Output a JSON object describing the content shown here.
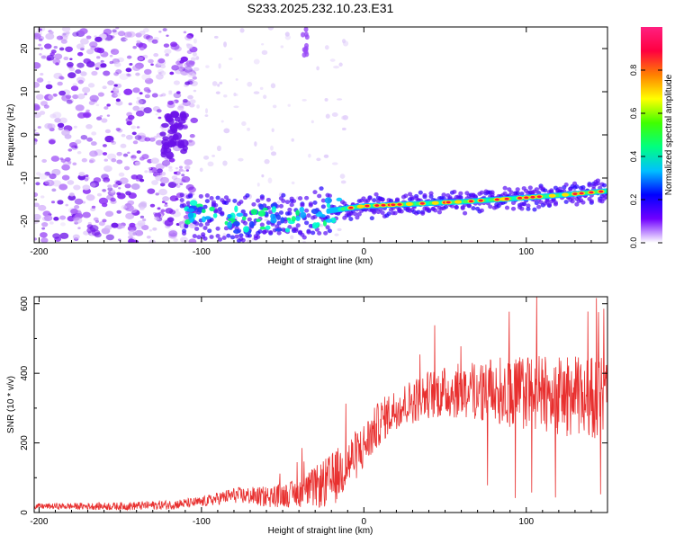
{
  "title": "S233.2025.232.10.23.E31",
  "colors": {
    "signal": "#ee2222",
    "snr_line": "#e8302f",
    "noise": "#7a18f0",
    "noise_light": "#d4b7f8",
    "axis": "#000000"
  },
  "chart_data": [
    {
      "type": "heatmap",
      "name": "spectrogram",
      "xlabel": "Height of straight line (km)",
      "ylabel": "Frequency (Hz)",
      "xlim": [
        -203,
        150
      ],
      "ylim": [
        -25,
        25
      ],
      "xticks": [
        -200,
        -100,
        0,
        100
      ],
      "yticks": [
        -20,
        -10,
        0,
        10,
        20
      ],
      "colorbar": {
        "label": "Normalized spectral amplitude",
        "ticks": [
          0,
          0.2,
          0.4,
          0.6,
          0.8
        ],
        "tick_labels": [
          "0.0",
          "0.2",
          "0.4",
          "0.6",
          "0.8"
        ],
        "range": [
          0,
          1
        ],
        "colormap": [
          "#ffffff",
          "#7000ff",
          "#0000ff",
          "#00c0ff",
          "#00ff80",
          "#40ff00",
          "#ffff00",
          "#ff8000",
          "#ff0040",
          "#ff2080"
        ]
      },
      "signal_track": [
        {
          "x": -110,
          "f": -18.5
        },
        {
          "x": -80,
          "f": -19.5
        },
        {
          "x": -40,
          "f": -19.0
        },
        {
          "x": -20,
          "f": -17.5
        },
        {
          "x": 0,
          "f": -16.5
        },
        {
          "x": 30,
          "f": -16.0
        },
        {
          "x": 60,
          "f": -15.5
        },
        {
          "x": 90,
          "f": -14.8
        },
        {
          "x": 120,
          "f": -14.0
        },
        {
          "x": 150,
          "f": -13.0
        }
      ],
      "noise_region_x": [
        -203,
        -110
      ],
      "noise_cluster": {
        "x": [
          -125,
          -110
        ],
        "f": [
          -5,
          5
        ]
      }
    },
    {
      "type": "line",
      "name": "snr",
      "xlabel": "Height of straight line (km)",
      "ylabel": "SNR (10 * v/v)",
      "xlim": [
        -203,
        150
      ],
      "ylim": [
        0,
        620
      ],
      "xticks": [
        -200,
        -100,
        0,
        100
      ],
      "yticks": [
        0,
        200,
        400,
        600
      ],
      "envelope": {
        "x": [
          -203,
          -150,
          -120,
          -100,
          -80,
          -60,
          -40,
          -20,
          -10,
          0,
          10,
          20,
          40,
          60,
          80,
          100,
          120,
          150
        ],
        "y": [
          18,
          18,
          22,
          30,
          50,
          45,
          55,
          90,
          140,
          190,
          260,
          300,
          340,
          350,
          350,
          345,
          335,
          330
        ]
      },
      "noise_amp": {
        "x": [
          -203,
          -100,
          -60,
          -40,
          -20,
          0,
          20,
          60,
          100,
          150
        ],
        "y": [
          8,
          15,
          30,
          40,
          80,
          70,
          60,
          80,
          110,
          120
        ]
      }
    }
  ]
}
